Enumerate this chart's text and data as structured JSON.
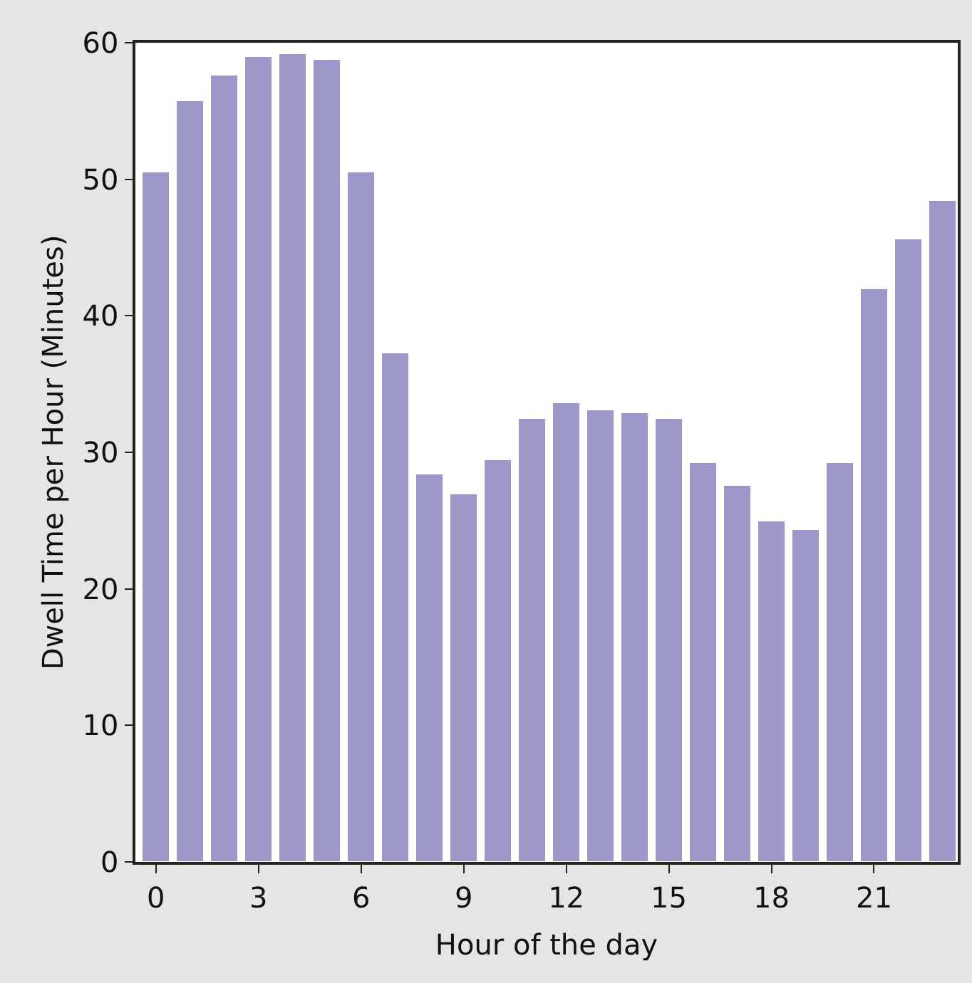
{
  "chart_data": {
    "type": "bar",
    "xlabel": "Hour of the day",
    "ylabel": "Dwell Time per Hour (Minutes)",
    "x": [
      0,
      1,
      2,
      3,
      4,
      5,
      6,
      7,
      8,
      9,
      10,
      11,
      12,
      13,
      14,
      15,
      16,
      17,
      18,
      19,
      20,
      21,
      22,
      23
    ],
    "values": [
      50.5,
      55.7,
      57.6,
      59.0,
      59.2,
      58.8,
      50.5,
      37.3,
      28.4,
      26.9,
      29.4,
      32.5,
      33.6,
      33.1,
      32.9,
      32.5,
      29.2,
      27.6,
      24.9,
      24.3,
      29.2,
      41.9,
      45.6,
      48.4
    ],
    "color": "#9b98c8",
    "xlim": [
      -0.6,
      23.45
    ],
    "xticks": [
      0,
      3,
      6,
      9,
      12,
      15,
      18,
      21
    ],
    "ylim": [
      0,
      60
    ],
    "yticks": [
      0,
      10,
      20,
      30,
      40,
      50,
      60
    ]
  }
}
